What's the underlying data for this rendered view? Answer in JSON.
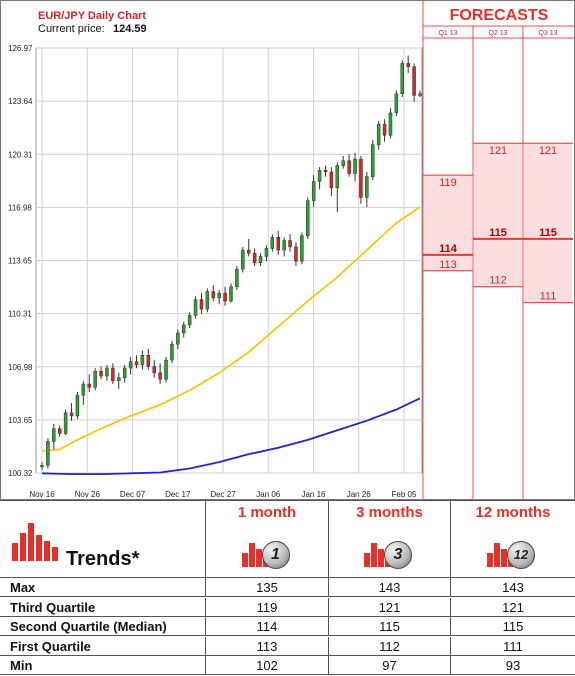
{
  "chart_data": {
    "type": "candlestick",
    "title": "EUR/JPY Daily Chart",
    "current_price_label": "Current price:",
    "current_price": "124.59",
    "y_ticks": [
      "126.97",
      "123.64",
      "120.31",
      "116.98",
      "113.65",
      "110.31",
      "106.98",
      "103.65",
      "100.32"
    ],
    "ylim": [
      100.32,
      126.97
    ],
    "x_ticks": [
      "Nov 16",
      "Nov 26",
      "Dec 07",
      "Dec 17",
      "Dec 27",
      "Jan 06",
      "Jan 16",
      "Jan 26",
      "Feb 05"
    ],
    "grid": true,
    "candles": [
      {
        "o": 100.7,
        "h": 101.0,
        "l": 100.5,
        "c": 100.8
      },
      {
        "o": 100.8,
        "h": 102.5,
        "l": 100.6,
        "c": 102.3
      },
      {
        "o": 102.3,
        "h": 103.4,
        "l": 101.8,
        "c": 103.1
      },
      {
        "o": 103.1,
        "h": 103.3,
        "l": 102.6,
        "c": 102.8
      },
      {
        "o": 102.8,
        "h": 104.3,
        "l": 102.7,
        "c": 104.1
      },
      {
        "o": 104.1,
        "h": 104.7,
        "l": 103.6,
        "c": 103.9
      },
      {
        "o": 103.9,
        "h": 105.4,
        "l": 103.7,
        "c": 105.2
      },
      {
        "o": 105.2,
        "h": 106.1,
        "l": 104.6,
        "c": 105.9
      },
      {
        "o": 105.9,
        "h": 106.5,
        "l": 105.4,
        "c": 105.7
      },
      {
        "o": 105.7,
        "h": 106.9,
        "l": 105.5,
        "c": 106.7
      },
      {
        "o": 106.7,
        "h": 107.0,
        "l": 106.2,
        "c": 106.4
      },
      {
        "o": 106.4,
        "h": 107.1,
        "l": 106.1,
        "c": 106.9
      },
      {
        "o": 106.9,
        "h": 107.2,
        "l": 105.9,
        "c": 106.1
      },
      {
        "o": 106.1,
        "h": 106.6,
        "l": 105.6,
        "c": 106.3
      },
      {
        "o": 106.3,
        "h": 107.1,
        "l": 106.0,
        "c": 106.9
      },
      {
        "o": 106.9,
        "h": 107.6,
        "l": 106.5,
        "c": 107.3
      },
      {
        "o": 107.3,
        "h": 107.7,
        "l": 106.9,
        "c": 107.1
      },
      {
        "o": 107.1,
        "h": 108.0,
        "l": 106.8,
        "c": 107.7
      },
      {
        "o": 107.7,
        "h": 108.1,
        "l": 106.8,
        "c": 107.0
      },
      {
        "o": 107.0,
        "h": 107.4,
        "l": 106.3,
        "c": 106.6
      },
      {
        "o": 106.6,
        "h": 107.2,
        "l": 105.9,
        "c": 106.2
      },
      {
        "o": 106.2,
        "h": 107.6,
        "l": 106.0,
        "c": 107.4
      },
      {
        "o": 107.4,
        "h": 108.6,
        "l": 107.2,
        "c": 108.4
      },
      {
        "o": 108.4,
        "h": 109.3,
        "l": 108.1,
        "c": 109.1
      },
      {
        "o": 109.1,
        "h": 109.8,
        "l": 108.8,
        "c": 109.6
      },
      {
        "o": 109.6,
        "h": 110.4,
        "l": 109.4,
        "c": 110.2
      },
      {
        "o": 110.2,
        "h": 111.4,
        "l": 110.0,
        "c": 111.2
      },
      {
        "o": 111.2,
        "h": 111.6,
        "l": 110.3,
        "c": 110.6
      },
      {
        "o": 110.6,
        "h": 111.9,
        "l": 110.4,
        "c": 111.7
      },
      {
        "o": 111.7,
        "h": 112.1,
        "l": 111.1,
        "c": 111.3
      },
      {
        "o": 111.3,
        "h": 111.8,
        "l": 110.9,
        "c": 111.6
      },
      {
        "o": 111.6,
        "h": 112.0,
        "l": 110.8,
        "c": 111.1
      },
      {
        "o": 111.1,
        "h": 112.2,
        "l": 111.0,
        "c": 112.0
      },
      {
        "o": 112.0,
        "h": 113.3,
        "l": 111.8,
        "c": 113.1
      },
      {
        "o": 113.1,
        "h": 114.5,
        "l": 112.9,
        "c": 114.3
      },
      {
        "o": 114.3,
        "h": 115.0,
        "l": 113.9,
        "c": 114.1
      },
      {
        "o": 114.1,
        "h": 114.4,
        "l": 113.3,
        "c": 113.5
      },
      {
        "o": 113.5,
        "h": 114.1,
        "l": 113.3,
        "c": 113.9
      },
      {
        "o": 113.9,
        "h": 114.6,
        "l": 113.6,
        "c": 114.4
      },
      {
        "o": 114.4,
        "h": 115.3,
        "l": 114.2,
        "c": 115.1
      },
      {
        "o": 115.1,
        "h": 115.5,
        "l": 114.0,
        "c": 114.3
      },
      {
        "o": 114.3,
        "h": 115.1,
        "l": 113.9,
        "c": 114.9
      },
      {
        "o": 114.9,
        "h": 115.3,
        "l": 114.2,
        "c": 114.5
      },
      {
        "o": 114.5,
        "h": 114.8,
        "l": 113.3,
        "c": 113.6
      },
      {
        "o": 113.6,
        "h": 115.4,
        "l": 113.4,
        "c": 115.2
      },
      {
        "o": 115.2,
        "h": 117.6,
        "l": 115.0,
        "c": 117.4
      },
      {
        "o": 117.4,
        "h": 119.0,
        "l": 117.0,
        "c": 118.6
      },
      {
        "o": 118.6,
        "h": 119.5,
        "l": 118.1,
        "c": 119.3
      },
      {
        "o": 119.3,
        "h": 119.6,
        "l": 118.9,
        "c": 119.2
      },
      {
        "o": 119.2,
        "h": 119.5,
        "l": 117.7,
        "c": 118.2
      },
      {
        "o": 118.2,
        "h": 119.8,
        "l": 116.7,
        "c": 119.6
      },
      {
        "o": 119.6,
        "h": 120.2,
        "l": 119.4,
        "c": 119.9
      },
      {
        "o": 119.9,
        "h": 120.3,
        "l": 118.9,
        "c": 119.1
      },
      {
        "o": 119.1,
        "h": 120.4,
        "l": 118.6,
        "c": 120.0
      },
      {
        "o": 120.0,
        "h": 120.2,
        "l": 117.2,
        "c": 117.6
      },
      {
        "o": 117.6,
        "h": 119.2,
        "l": 117.0,
        "c": 118.9
      },
      {
        "o": 118.9,
        "h": 121.2,
        "l": 118.7,
        "c": 120.9
      },
      {
        "o": 120.9,
        "h": 122.4,
        "l": 120.6,
        "c": 122.2
      },
      {
        "o": 122.2,
        "h": 122.5,
        "l": 121.1,
        "c": 121.5
      },
      {
        "o": 121.5,
        "h": 123.2,
        "l": 121.3,
        "c": 122.9
      },
      {
        "o": 122.9,
        "h": 124.3,
        "l": 122.7,
        "c": 124.1
      },
      {
        "o": 124.1,
        "h": 126.2,
        "l": 123.9,
        "c": 126.0
      },
      {
        "o": 126.0,
        "h": 126.5,
        "l": 125.4,
        "c": 125.8
      },
      {
        "o": 125.8,
        "h": 126.0,
        "l": 123.6,
        "c": 124.0
      },
      {
        "o": 124.0,
        "h": 124.3,
        "l": 123.9,
        "c": 124.1
      }
    ],
    "series": [
      {
        "color": "#f5c518",
        "values": [
          [
            0,
            101.7
          ],
          [
            3,
            101.8
          ],
          [
            6,
            102.4
          ],
          [
            10,
            103.1
          ],
          [
            15,
            103.9
          ],
          [
            20,
            104.6
          ],
          [
            25,
            105.5
          ],
          [
            30,
            106.6
          ],
          [
            35,
            107.9
          ],
          [
            40,
            109.5
          ],
          [
            45,
            111.1
          ],
          [
            50,
            112.6
          ],
          [
            55,
            114.3
          ],
          [
            60,
            116.0
          ],
          [
            64,
            117.0
          ]
        ]
      },
      {
        "color": "#2226c7",
        "values": [
          [
            0,
            100.3
          ],
          [
            5,
            100.25
          ],
          [
            10,
            100.25
          ],
          [
            15,
            100.3
          ],
          [
            20,
            100.35
          ],
          [
            25,
            100.6
          ],
          [
            30,
            101.0
          ],
          [
            35,
            101.5
          ],
          [
            40,
            101.9
          ],
          [
            45,
            102.4
          ],
          [
            50,
            103.0
          ],
          [
            55,
            103.6
          ],
          [
            60,
            104.3
          ],
          [
            64,
            105.0
          ]
        ]
      }
    ]
  },
  "forecasts": {
    "title": "FORECASTS",
    "columns": [
      {
        "label": "Q1 13",
        "upper": 119,
        "median": 114,
        "lower": 113
      },
      {
        "label": "Q2 13",
        "upper": 121,
        "median": 115,
        "lower": 112
      },
      {
        "label": "Q3 13",
        "upper": 121,
        "median": 115,
        "lower": 111
      }
    ],
    "colors": {
      "band": "#fbdfe0",
      "line": "#e53935",
      "text": "#c62828"
    }
  },
  "trends": {
    "title": "Trends*",
    "periods": [
      {
        "label": "1 month",
        "badge": "1"
      },
      {
        "label": "3 months",
        "badge": "3"
      },
      {
        "label": "12 months",
        "badge": "12"
      }
    ],
    "rows": [
      {
        "label": "Max",
        "values": [
          "135",
          "143",
          "143"
        ]
      },
      {
        "label": "Third Quartile",
        "values": [
          "119",
          "121",
          "121"
        ]
      },
      {
        "label": "Second Quartile (Median)",
        "values": [
          "114",
          "115",
          "115"
        ]
      },
      {
        "label": "First Quartile",
        "values": [
          "113",
          "112",
          "111"
        ]
      },
      {
        "label": "Min",
        "values": [
          "102",
          "97",
          "93"
        ]
      }
    ],
    "accent": "#e8302a"
  }
}
